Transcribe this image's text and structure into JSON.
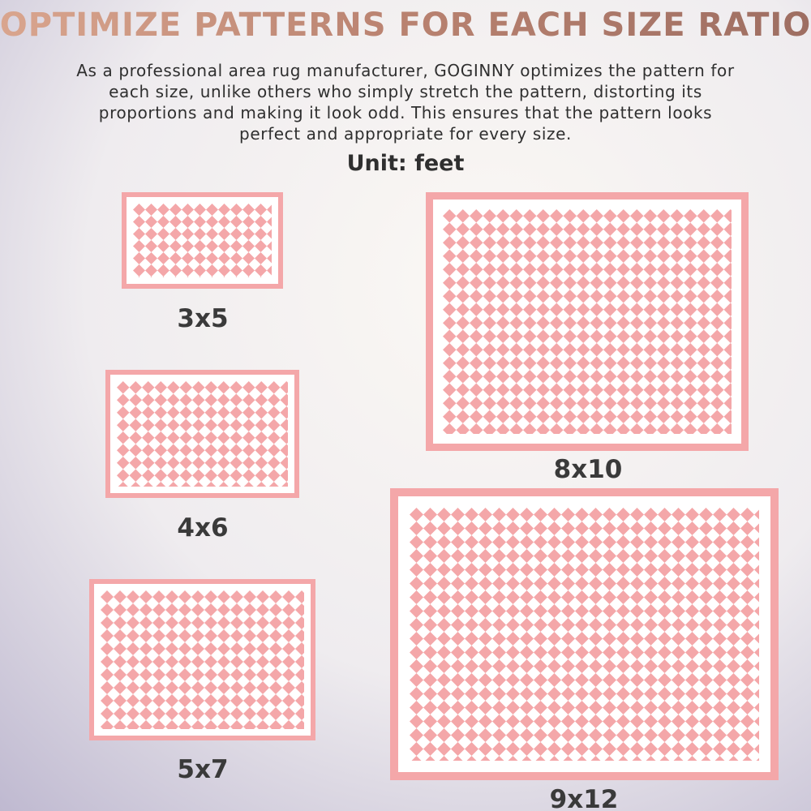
{
  "title": "OPTIMIZE PATTERNS FOR EACH SIZE RATIO",
  "description": [
    "As a professional area rug manufacturer, GOGINNY optimizes the pattern for",
    "each size, unlike others who simply stretch the pattern, distorting its",
    "proportions and making it look odd. This ensures that the pattern looks",
    "perfect and appropriate for every size."
  ],
  "unit": "Unit: feet",
  "rugs": [
    {
      "label": "3x5"
    },
    {
      "label": "4x6"
    },
    {
      "label": "5x7"
    },
    {
      "label": "8x10"
    },
    {
      "label": "9x12"
    }
  ]
}
